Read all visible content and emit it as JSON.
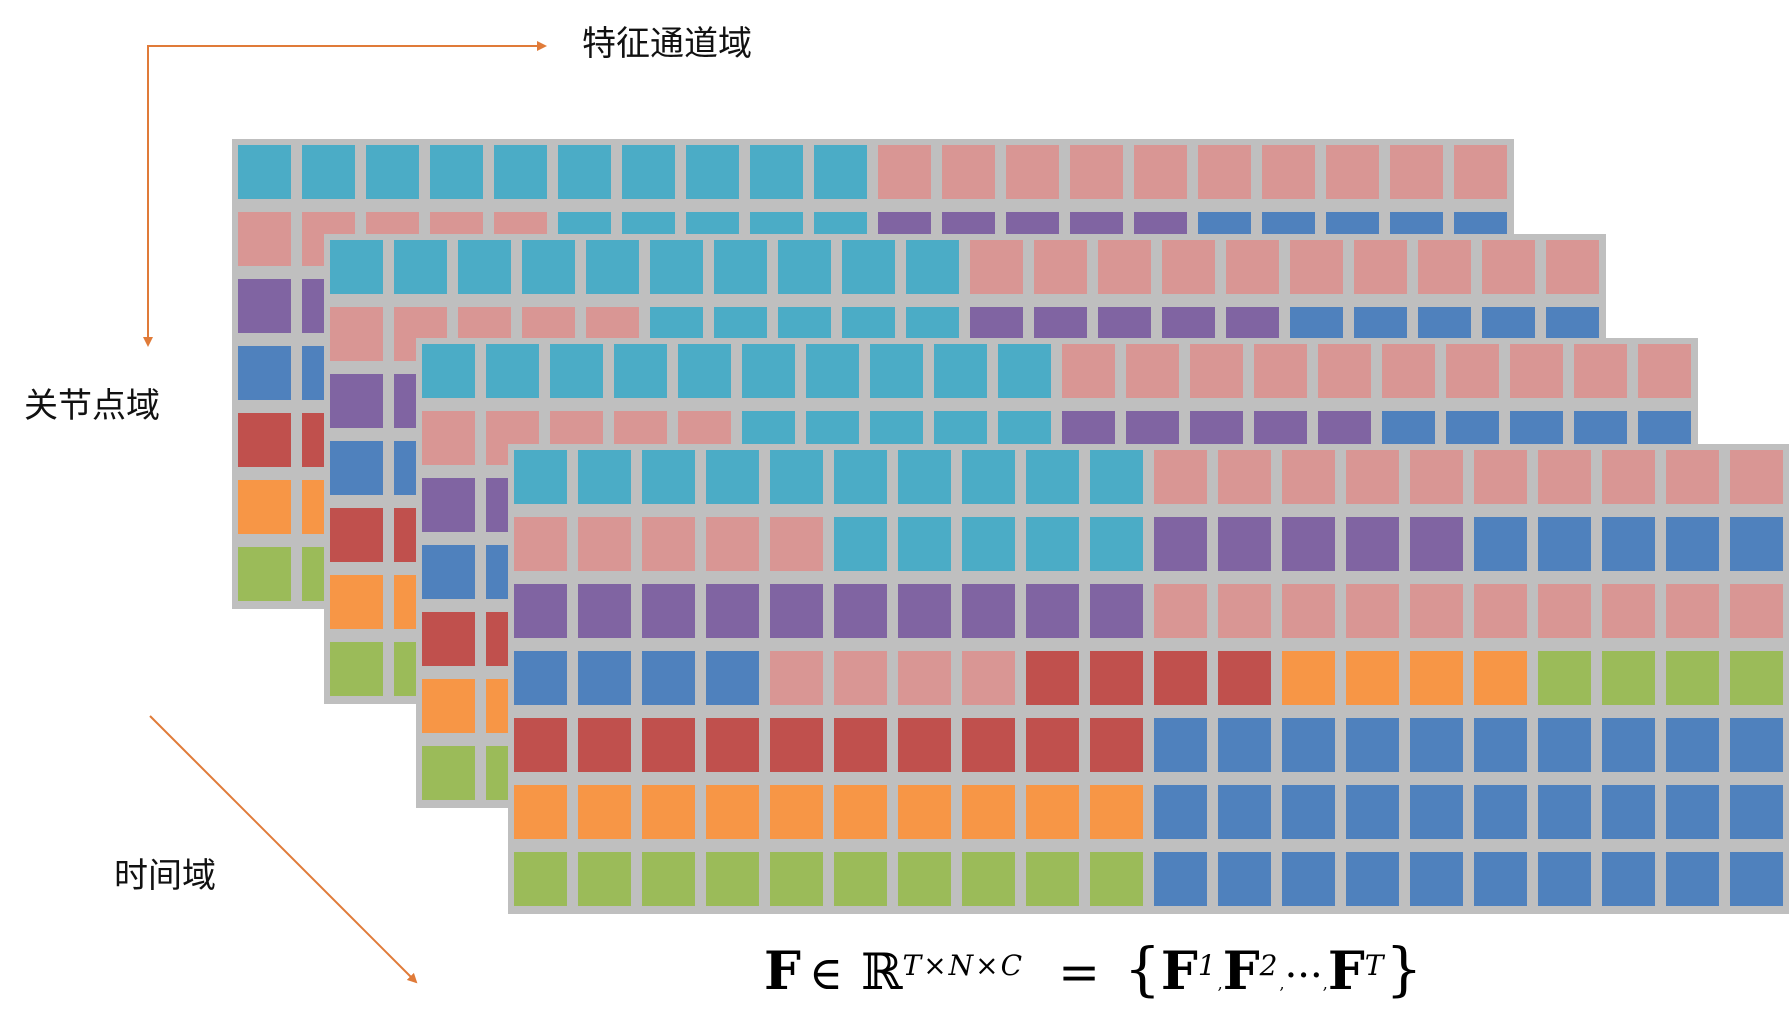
{
  "labels": {
    "channel_domain": "特征通道域",
    "joint_domain": "关节点域",
    "time_domain": "时间域"
  },
  "formula": {
    "F": "F",
    "in": "∈",
    "R": "ℝ",
    "dims": "T×N×C",
    "eq": "=",
    "open": "{",
    "close": "}",
    "sep": ",",
    "dots": "···",
    "sup1": "1",
    "sup2": "2",
    "supT": "T"
  },
  "colors": {
    "axis_arrow": "#e07b39",
    "panel_bg": "#bfbfbf",
    "palette": {
      "t": "#4bacc6",
      "p": "#d99694",
      "u": "#8064a2",
      "b": "#4f81bd",
      "r": "#c0504d",
      "o": "#f79646",
      "g": "#9bbb59"
    }
  },
  "grid_rows": [
    [
      "t",
      "t",
      "t",
      "t",
      "t",
      "t",
      "t",
      "t",
      "t",
      "t",
      "p",
      "p",
      "p",
      "p",
      "p",
      "p",
      "p",
      "p",
      "p",
      "p"
    ],
    [
      "p",
      "p",
      "p",
      "p",
      "p",
      "t",
      "t",
      "t",
      "t",
      "t",
      "u",
      "u",
      "u",
      "u",
      "u",
      "b",
      "b",
      "b",
      "b",
      "b"
    ],
    [
      "u",
      "u",
      "u",
      "u",
      "u",
      "u",
      "u",
      "u",
      "u",
      "u",
      "p",
      "p",
      "p",
      "p",
      "p",
      "p",
      "p",
      "p",
      "p",
      "p"
    ],
    [
      "b",
      "b",
      "b",
      "b",
      "p",
      "p",
      "p",
      "p",
      "r",
      "r",
      "r",
      "r",
      "o",
      "o",
      "o",
      "o",
      "g",
      "g",
      "g",
      "g"
    ],
    [
      "r",
      "r",
      "r",
      "r",
      "r",
      "r",
      "r",
      "r",
      "r",
      "r",
      "b",
      "b",
      "b",
      "b",
      "b",
      "b",
      "b",
      "b",
      "b",
      "b"
    ],
    [
      "o",
      "o",
      "o",
      "o",
      "o",
      "o",
      "o",
      "o",
      "o",
      "o",
      "b",
      "b",
      "b",
      "b",
      "b",
      "b",
      "b",
      "b",
      "b",
      "b"
    ],
    [
      "g",
      "g",
      "g",
      "g",
      "g",
      "g",
      "g",
      "g",
      "g",
      "g",
      "b",
      "b",
      "b",
      "b",
      "b",
      "b",
      "b",
      "b",
      "b",
      "b"
    ]
  ]
}
